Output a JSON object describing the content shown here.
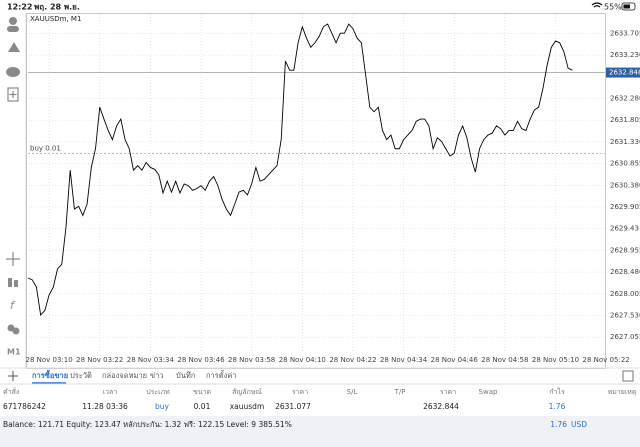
{
  "status_bar": {
    "time": "12:22",
    "date": "พฤ. 28 พ.ย.",
    "battery": "55%"
  },
  "toolbar": {
    "timeframe": "M1"
  },
  "chart_data": {
    "type": "line",
    "title": "XAUUSDm, M1",
    "color": "#000000",
    "grid": true,
    "categories": [
      null,
      null,
      null,
      null,
      null,
      "28 Nov 03:10",
      null,
      null,
      null,
      null,
      null,
      null,
      null,
      null,
      null,
      null,
      null,
      "28 Nov 03:22",
      null,
      null,
      null,
      null,
      null,
      null,
      null,
      null,
      null,
      null,
      null,
      "28 Nov 03:34",
      null,
      null,
      null,
      null,
      null,
      null,
      null,
      null,
      null,
      null,
      null,
      "28 Nov 03:46",
      null,
      null,
      null,
      null,
      null,
      null,
      null,
      null,
      null,
      null,
      null,
      "28 Nov 03:58",
      null,
      null,
      null,
      null,
      null,
      null,
      null,
      null,
      null,
      null,
      null,
      "28 Nov 04:10",
      null,
      null,
      null,
      null,
      null,
      null,
      null,
      null,
      null,
      null,
      null,
      "28 Nov 04:22",
      null,
      null,
      null,
      null,
      null,
      null,
      null,
      null,
      null,
      null,
      null,
      "28 Nov 04:34",
      null,
      null,
      null,
      null,
      null,
      null,
      null,
      null,
      null,
      null,
      null,
      "28 Nov 04:46",
      null,
      null,
      null,
      null,
      null,
      null,
      null,
      null,
      null,
      null,
      null,
      "28 Nov 04:58",
      null,
      null,
      null,
      null,
      null,
      null,
      null,
      null,
      null,
      null,
      null,
      "28 Nov 05:10",
      null,
      null,
      null,
      null,
      null,
      null,
      null,
      null,
      null,
      null,
      null,
      "28 Nov 05:22"
    ],
    "values": [
      2628.35,
      2628.31,
      2628.15,
      2627.54,
      2627.64,
      2627.98,
      2628.15,
      2628.55,
      2628.65,
      2629.46,
      2630.71,
      2629.86,
      2629.92,
      2629.72,
      2629.97,
      2630.77,
      2631.18,
      2632.09,
      2631.83,
      2631.58,
      2631.38,
      2631.68,
      2631.83,
      2631.38,
      2631.18,
      2630.71,
      2630.81,
      2630.71,
      2630.88,
      2630.77,
      2630.73,
      2630.61,
      2630.21,
      2630.47,
      2630.23,
      2630.47,
      2630.21,
      2630.41,
      2630.37,
      2630.27,
      2630.31,
      2630.37,
      2630.27,
      2630.47,
      2630.57,
      2630.37,
      2630.07,
      2629.86,
      2629.72,
      2629.97,
      2630.23,
      2630.27,
      2630.17,
      2630.41,
      2630.77,
      2630.47,
      2630.51,
      2630.61,
      2630.71,
      2630.81,
      2631.38,
      2633.1,
      2632.9,
      2632.9,
      2633.5,
      2633.85,
      2633.6,
      2633.4,
      2633.5,
      2633.64,
      2633.85,
      2633.91,
      2633.71,
      2633.5,
      2633.71,
      2633.71,
      2633.91,
      2633.81,
      2633.6,
      2633.5,
      2632.8,
      2632.09,
      2631.99,
      2632.09,
      2631.58,
      2631.38,
      2631.48,
      2631.18,
      2631.18,
      2631.38,
      2631.48,
      2631.58,
      2631.78,
      2631.83,
      2631.83,
      2631.68,
      2631.18,
      2631.42,
      2631.34,
      2631.18,
      2631.02,
      2631.08,
      2631.48,
      2631.68,
      2631.42,
      2630.98,
      2630.67,
      2631.18,
      2631.38,
      2631.48,
      2631.52,
      2631.68,
      2631.62,
      2631.48,
      2631.58,
      2631.58,
      2631.78,
      2631.62,
      2631.58,
      2631.83,
      2632.03,
      2632.09,
      2632.49,
      2633.0,
      2633.4,
      2633.54,
      2633.5,
      2633.3,
      2632.94,
      2632.9,
      null,
      null,
      null,
      null,
      null,
      null,
      null,
      null
    ],
    "ylim": [
      2626.73,
      2634.13
    ],
    "yticks": [
      2633.705,
      {
        "value": 2633.23,
        "label": "2633.230"
      },
      {
        "value": 2632.28,
        "label": "2632.280"
      },
      2631.805,
      {
        "value": 2631.33,
        "label": "2631.330"
      },
      2630.855,
      {
        "value": 2630.38,
        "label": "2630.380"
      },
      2629.905,
      2629.43,
      2628.955,
      {
        "value": 2628.48,
        "label": "2628.480"
      },
      2628.005,
      {
        "value": 2627.53,
        "label": "2627.530"
      },
      2627.055
    ],
    "current_price": 2632.848,
    "order_label": "buy 0.01"
  },
  "tabs": [
    "การซื้อขาย",
    "ประวัติ",
    "กล่องจดหมาย",
    "ข่าว",
    "บันทึก",
    "การตั้งค่า"
  ],
  "table": {
    "columns": [
      "คำสั่ง",
      "เวลา",
      "ประเภท",
      "ขนาด",
      "สัญลักษณ์",
      "ราคา",
      "S/L",
      "T/P",
      "ราคา",
      "Swap",
      "กำไร",
      "หมายเหตุ"
    ],
    "rows": [
      {
        "order": "671786242",
        "time": "11.28 03:36",
        "type": "buy",
        "volume": 0.01,
        "symbol": "xauusdm",
        "open_price": 2631.077,
        "current_price": 2632.844,
        "profit": 1.76
      }
    ]
  },
  "footer": {
    "summary": "Balance: 121.71 Equity: 123.47 หลักประกัน: 1.32 ฟรี: 122.15 Level: 9 385.51%",
    "profit": 1.76,
    "currency": "USD"
  }
}
